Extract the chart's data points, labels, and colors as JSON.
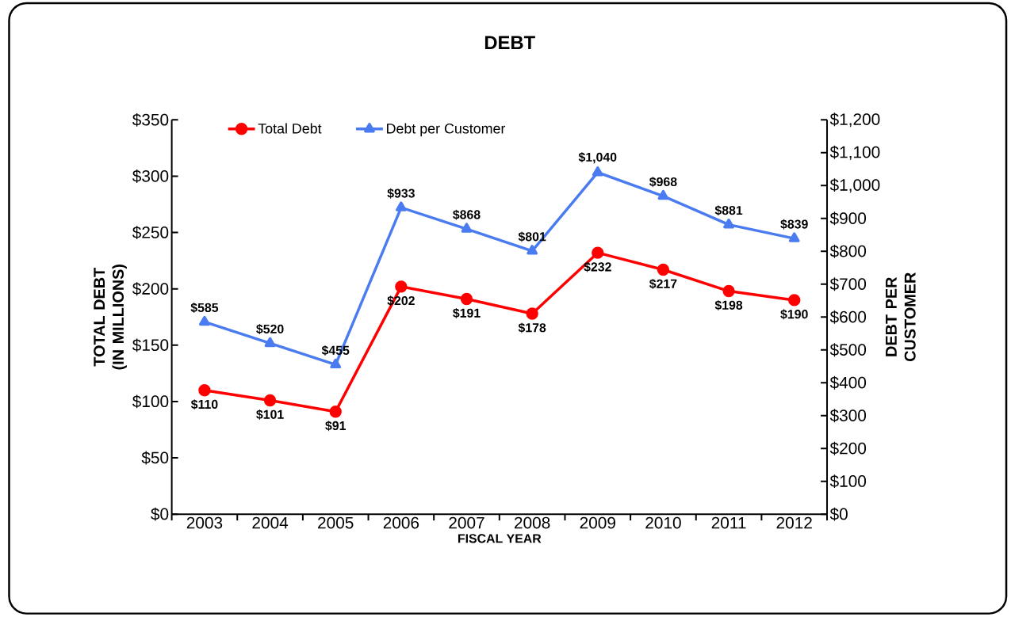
{
  "chart_data": {
    "type": "line",
    "title": "DEBT",
    "xlabel": "FISCAL YEAR",
    "ylabel": "TOTAL DEBT (IN MILLIONS)",
    "y2label": "DEBT PER CUSTOMER",
    "categories": [
      "2003",
      "2004",
      "2005",
      "2006",
      "2007",
      "2008",
      "2009",
      "2010",
      "2011",
      "2012"
    ],
    "series": [
      {
        "name": "Total Debt",
        "color": "#ff0000",
        "marker": "circle",
        "values": [
          110,
          101,
          91,
          202,
          191,
          178,
          232,
          217,
          198,
          190
        ],
        "value_labels": [
          "$110",
          "$101",
          "$91",
          "$202",
          "$191",
          "$178",
          "$232",
          "$217",
          "$198",
          "$190"
        ]
      },
      {
        "name": "Debt per Customer",
        "color": "#4a7bf0",
        "marker": "triangle",
        "axis": "y2",
        "values": [
          585,
          520,
          455,
          933,
          868,
          801,
          1040,
          968,
          881,
          839
        ],
        "value_labels": [
          "$585",
          "$520",
          "$455",
          "$933",
          "$868",
          "$801",
          "$1,040",
          "$968",
          "$881",
          "$839"
        ]
      }
    ],
    "ylim": [
      0,
      350
    ],
    "yticks": [
      {
        "value": 0,
        "label": "$0"
      },
      {
        "value": 50,
        "label": "$50"
      },
      {
        "value": 100,
        "label": "$100"
      },
      {
        "value": 150,
        "label": "$150"
      },
      {
        "value": 200,
        "label": "$200"
      },
      {
        "value": 250,
        "label": "$250"
      },
      {
        "value": 300,
        "label": "$300"
      },
      {
        "value": 350,
        "label": "$350"
      }
    ],
    "y2lim": [
      0,
      1200
    ],
    "y2ticks": [
      {
        "value": 0,
        "label": "$0"
      },
      {
        "value": 100,
        "label": "$100"
      },
      {
        "value": 200,
        "label": "$200"
      },
      {
        "value": 300,
        "label": "$300"
      },
      {
        "value": 400,
        "label": "$400"
      },
      {
        "value": 500,
        "label": "$500"
      },
      {
        "value": 600,
        "label": "$600"
      },
      {
        "value": 700,
        "label": "$700"
      },
      {
        "value": 800,
        "label": "$800"
      },
      {
        "value": 900,
        "label": "$900"
      },
      {
        "value": 1000,
        "label": "$1,000"
      },
      {
        "value": 1100,
        "label": "$1,100"
      },
      {
        "value": 1200,
        "label": "$1,200"
      }
    ],
    "legend": "top left",
    "line_style": "solid"
  }
}
